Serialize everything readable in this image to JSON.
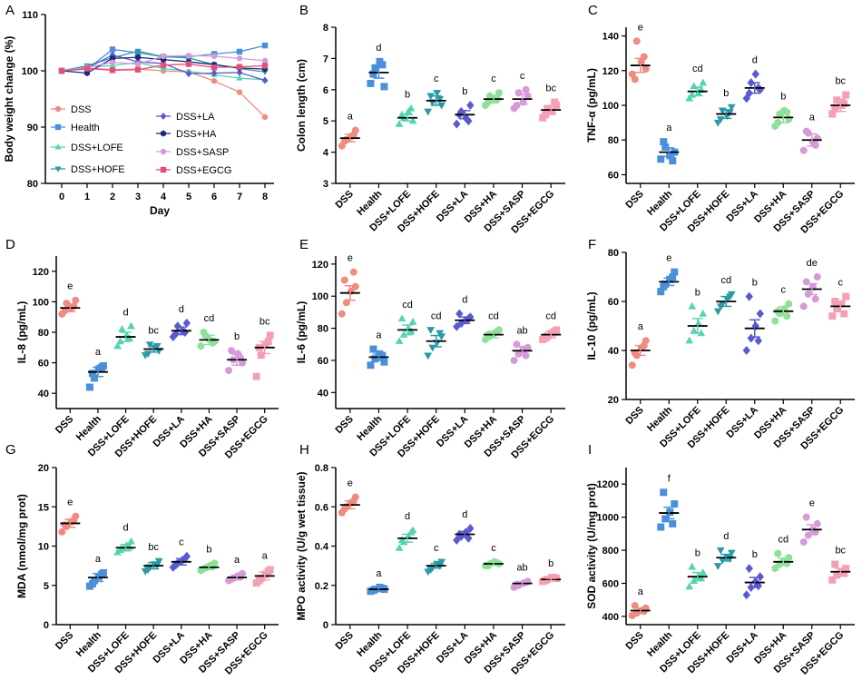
{
  "colors": {
    "DSS": "#f08b80",
    "Health": "#4a90d9",
    "DSS+LOFE": "#56d4b0",
    "DSS+HOFE": "#2a9aa6",
    "DSS+LA": "#5a5ad0",
    "DSS+HA": "#8fe09a",
    "DSS+SASP": "#d69ad8",
    "DSS+EGCG": "#f4a0b4",
    "Health_line": "#4a90d9",
    "DSS+HA_line": "#1a2a7a",
    "DSS+EGCG_line": "#e0507a"
  },
  "groups": [
    "DSS",
    "Health",
    "DSS+LOFE",
    "DSS+HOFE",
    "DSS+LA",
    "DSS+HA",
    "DSS+SASP",
    "DSS+EGCG"
  ],
  "marker_shapes": {
    "DSS": "circle",
    "Health": "square",
    "DSS+LOFE": "triangle-up",
    "DSS+HOFE": "triangle-down",
    "DSS+LA": "diamond",
    "DSS+HA": "hexagon",
    "DSS+SASP": "circle",
    "DSS+EGCG": "square"
  },
  "chart_data": [
    {
      "panel": "A",
      "type": "line",
      "xlabel": "Day",
      "ylabel": "Body weight change (%)",
      "ylim": [
        80,
        110
      ],
      "yticks": [
        80,
        90,
        100,
        110
      ],
      "x": [
        0,
        1,
        2,
        3,
        4,
        5,
        6,
        7,
        8
      ],
      "legend": {
        "position": "lower-left",
        "entries": [
          "DSS",
          "Health",
          "DSS+LOFE",
          "DSS+HOFE",
          "DSS+LA",
          "DSS+HA",
          "DSS+SASP",
          "DSS+EGCG"
        ]
      },
      "series": [
        {
          "name": "DSS",
          "marker": "circle",
          "values": [
            100,
            100.5,
            100.2,
            100.3,
            100,
            99.8,
            98.2,
            96.2,
            91.8
          ]
        },
        {
          "name": "Health",
          "marker": "square",
          "values": [
            100,
            100.3,
            103.8,
            103.2,
            102.5,
            102.5,
            103,
            103.4,
            104.5
          ]
        },
        {
          "name": "DSS+LOFE",
          "marker": "triangle-up",
          "values": [
            100,
            100.8,
            100.9,
            101.5,
            100.4,
            99.9,
            99.3,
            98.7,
            98.4
          ]
        },
        {
          "name": "DSS+HOFE",
          "marker": "triangle-down",
          "values": [
            100,
            100.9,
            102.3,
            103.5,
            102.5,
            102.3,
            101.1,
            100.4,
            99.8
          ]
        },
        {
          "name": "DSS+LA",
          "marker": "diamond",
          "values": [
            100,
            100.5,
            102.8,
            101.6,
            101.3,
            99.5,
            99.6,
            99.7,
            98.3
          ]
        },
        {
          "name": "DSS+HA",
          "marker": "hexagon",
          "values": [
            100,
            99.6,
            102.2,
            102.4,
            102,
            101.6,
            101.1,
            100.5,
            100.3
          ]
        },
        {
          "name": "DSS+SASP",
          "marker": "circle",
          "values": [
            100,
            100.6,
            101.5,
            101.2,
            102.6,
            102.7,
            102.6,
            102.2,
            101.8
          ]
        },
        {
          "name": "DSS+EGCG",
          "marker": "square",
          "values": [
            100,
            100.4,
            100.1,
            100.2,
            101,
            101.2,
            100.6,
            100.7,
            100.9
          ]
        }
      ]
    },
    {
      "panel": "B",
      "type": "scatter",
      "ylabel": "Colon length (cm)",
      "ylim": [
        3,
        8
      ],
      "yticks": [
        3,
        4,
        5,
        6,
        7,
        8
      ],
      "categories": [
        "DSS",
        "Health",
        "DSS+LOFE",
        "DSS+HOFE",
        "DSS+LA",
        "DSS+HA",
        "DSS+SASP",
        "DSS+EGCG"
      ],
      "means": [
        4.45,
        6.55,
        5.1,
        5.65,
        5.2,
        5.7,
        5.7,
        5.35
      ],
      "sems": [
        0.12,
        0.18,
        0.1,
        0.15,
        0.13,
        0.12,
        0.16,
        0.12
      ],
      "points": [
        [
          4.2,
          4.4,
          4.5,
          4.7,
          4.35,
          4.55
        ],
        [
          6.2,
          6.7,
          6.9,
          6.1,
          6.5,
          6.8
        ],
        [
          4.9,
          5.1,
          5.3,
          5.0,
          5.2,
          5.4
        ],
        [
          5.3,
          5.6,
          5.9,
          5.5,
          5.8,
          5.7
        ],
        [
          4.9,
          5.3,
          5.1,
          5.5,
          5.2,
          5.0
        ],
        [
          5.5,
          5.8,
          5.7,
          5.9,
          5.6,
          5.7
        ],
        [
          5.4,
          5.9,
          5.6,
          5.8,
          5.5,
          6.0
        ],
        [
          5.1,
          5.4,
          5.3,
          5.5,
          5.2,
          5.6
        ]
      ],
      "sig": [
        "a",
        "d",
        "b",
        "c",
        "b",
        "c",
        "c",
        "bc"
      ]
    },
    {
      "panel": "C",
      "type": "scatter",
      "ylabel": "TNF-α  (pg/mL)",
      "ylim": [
        55,
        145
      ],
      "yticks": [
        60,
        80,
        100,
        120,
        140
      ],
      "categories": [
        "DSS",
        "Health",
        "DSS+LOFE",
        "DSS+HOFE",
        "DSS+LA",
        "DSS+HA",
        "DSS+SASP",
        "DSS+EGCG"
      ],
      "means": [
        123,
        73,
        108,
        95,
        110,
        93,
        80,
        100
      ],
      "sems": [
        4,
        2.5,
        2.5,
        2.5,
        3,
        3,
        3.5,
        3.5
      ],
      "points": [
        [
          118,
          137,
          125,
          121,
          115,
          128
        ],
        [
          69,
          76,
          71,
          73,
          79,
          68
        ],
        [
          104,
          111,
          107,
          113,
          106,
          109
        ],
        [
          90,
          97,
          94,
          99,
          92,
          96
        ],
        [
          104,
          113,
          118,
          109,
          107,
          110
        ],
        [
          88,
          95,
          97,
          92,
          90,
          96
        ],
        [
          74,
          84,
          79,
          81,
          85,
          77
        ],
        [
          95,
          103,
          100,
          106,
          98,
          101
        ]
      ],
      "sig": [
        "e",
        "a",
        "cd",
        "b",
        "d",
        "b",
        "a",
        "bc"
      ]
    },
    {
      "panel": "D",
      "type": "scatter",
      "ylabel": "IL-8 (pg/mL)",
      "ylim": [
        30,
        130
      ],
      "yticks": [
        40,
        60,
        80,
        100,
        120
      ],
      "categories": [
        "DSS",
        "Health",
        "DSS+LOFE",
        "DSS+HOFE",
        "DSS+LA",
        "DSS+HA",
        "DSS+SASP",
        "DSS+EGCG"
      ],
      "means": [
        96,
        54,
        77,
        69,
        81,
        75,
        62,
        70
      ],
      "sems": [
        2.5,
        3,
        3,
        2,
        2.5,
        3,
        3.5,
        4
      ],
      "points": [
        [
          92,
          99,
          96,
          101,
          94,
          97
        ],
        [
          44,
          50,
          56,
          58,
          53,
          57
        ],
        [
          71,
          82,
          78,
          84,
          74,
          76
        ],
        [
          65,
          72,
          70,
          68,
          66,
          71
        ],
        [
          77,
          84,
          81,
          86,
          79,
          80
        ],
        [
          71,
          78,
          75,
          74,
          80,
          73
        ],
        [
          55,
          62,
          66,
          60,
          68,
          63
        ],
        [
          51,
          65,
          72,
          78,
          70,
          74
        ]
      ],
      "sig": [
        "e",
        "a",
        "d",
        "bc",
        "d",
        "cd",
        "b",
        "bc"
      ]
    },
    {
      "panel": "E",
      "type": "scatter",
      "ylabel": "IL-6 (pg/mL)",
      "ylim": [
        30,
        125
      ],
      "yticks": [
        40,
        60,
        80,
        100,
        120
      ],
      "categories": [
        "DSS",
        "Health",
        "DSS+LOFE",
        "DSS+HOFE",
        "DSS+LA",
        "DSS+HA",
        "DSS+SASP",
        "DSS+EGCG"
      ],
      "means": [
        102,
        62,
        79,
        72,
        85,
        76,
        66,
        76
      ],
      "sems": [
        4.5,
        2,
        3,
        3.5,
        2,
        2,
        2.5,
        2
      ],
      "points": [
        [
          89,
          96,
          103,
          106,
          110,
          115
        ],
        [
          57,
          61,
          64,
          59,
          67,
          63
        ],
        [
          72,
          76,
          80,
          84,
          86,
          78
        ],
        [
          63,
          68,
          71,
          75,
          79,
          77
        ],
        [
          81,
          83,
          85,
          87,
          89,
          86
        ],
        [
          73,
          75,
          77,
          79,
          76,
          78
        ],
        [
          60,
          64,
          67,
          68,
          70,
          63
        ],
        [
          73,
          75,
          77,
          79,
          74,
          78
        ]
      ],
      "sig": [
        "e",
        "a",
        "cd",
        "cd",
        "d",
        "cd",
        "ab",
        "cd"
      ]
    },
    {
      "panel": "F",
      "type": "scatter",
      "ylabel": "IL-10 (pg/mL)",
      "ylim": [
        20,
        80
      ],
      "yticks": [
        20,
        40,
        60,
        80
      ],
      "categories": [
        "DSS",
        "Health",
        "DSS+LOFE",
        "DSS+HOFE",
        "DSS+LA",
        "DSS+HA",
        "DSS+SASP",
        "DSS+EGCG"
      ],
      "means": [
        40,
        68,
        50,
        60,
        49,
        56,
        65,
        58
      ],
      "sems": [
        2,
        1.5,
        3,
        2,
        3.5,
        1.8,
        2.2,
        2
      ],
      "points": [
        [
          34,
          38,
          41,
          44,
          39,
          42
        ],
        [
          64,
          67,
          69,
          72,
          66,
          70
        ],
        [
          44,
          48,
          51,
          55,
          58,
          47
        ],
        [
          56,
          59,
          61,
          63,
          58,
          62
        ],
        [
          40,
          45,
          50,
          55,
          62,
          44
        ],
        [
          52,
          55,
          57,
          59,
          56,
          54
        ],
        [
          58,
          63,
          66,
          70,
          68,
          61
        ],
        [
          54,
          57,
          59,
          62,
          60,
          55
        ]
      ],
      "sig": [
        "a",
        "e",
        "b",
        "cd",
        "b",
        "c",
        "de",
        "c"
      ]
    },
    {
      "panel": "G",
      "type": "scatter",
      "ylabel": "MDA (nmol/mg prot)",
      "ylim": [
        0,
        20
      ],
      "yticks": [
        0,
        5,
        10,
        15,
        20
      ],
      "categories": [
        "DSS",
        "Health",
        "DSS+LOFE",
        "DSS+HOFE",
        "DSS+LA",
        "DSS+HA",
        "DSS+SASP",
        "DSS+EGCG"
      ],
      "means": [
        12.9,
        6.0,
        9.8,
        7.5,
        8.0,
        7.3,
        6.0,
        6.2
      ],
      "sems": [
        0.5,
        0.5,
        0.4,
        0.4,
        0.4,
        0.3,
        0.3,
        0.5
      ],
      "points": [
        [
          11.8,
          12.5,
          13.1,
          13.8,
          12.7,
          13.3
        ],
        [
          4.9,
          5.6,
          6.1,
          6.6,
          5.2,
          6.4
        ],
        [
          9.2,
          9.7,
          10.1,
          10.6,
          9.5,
          9.9
        ],
        [
          6.8,
          7.3,
          7.7,
          8.1,
          7.0,
          7.6
        ],
        [
          7.3,
          7.8,
          8.2,
          8.7,
          7.6,
          8.4
        ],
        [
          6.9,
          7.2,
          7.5,
          7.8,
          7.1,
          7.4
        ],
        [
          5.6,
          5.9,
          6.2,
          6.5,
          5.8,
          6.1
        ],
        [
          5.3,
          5.9,
          6.4,
          7.0,
          5.6,
          6.8
        ]
      ],
      "sig": [
        "e",
        "a",
        "d",
        "bc",
        "c",
        "b",
        "a",
        "a"
      ]
    },
    {
      "panel": "H",
      "type": "scatter",
      "ylabel": "MPO activity (U/g wet tissue)",
      "ylim": [
        0,
        0.8
      ],
      "yticks": [
        0,
        0.2,
        0.4,
        0.6,
        0.8
      ],
      "categories": [
        "DSS",
        "Health",
        "DSS+LOFE",
        "DSS+HOFE",
        "DSS+LA",
        "DSS+HA",
        "DSS+SASP",
        "DSS+EGCG"
      ],
      "means": [
        0.61,
        0.18,
        0.44,
        0.3,
        0.46,
        0.31,
        0.21,
        0.23
      ],
      "sems": [
        0.02,
        0.008,
        0.02,
        0.012,
        0.015,
        0.008,
        0.008,
        0.006
      ],
      "points": [
        [
          0.57,
          0.6,
          0.62,
          0.65,
          0.59,
          0.63
        ],
        [
          0.17,
          0.18,
          0.19,
          0.18,
          0.175,
          0.185
        ],
        [
          0.39,
          0.42,
          0.45,
          0.48,
          0.43,
          0.47
        ],
        [
          0.27,
          0.29,
          0.31,
          0.32,
          0.28,
          0.3
        ],
        [
          0.43,
          0.45,
          0.47,
          0.49,
          0.46,
          0.44
        ],
        [
          0.3,
          0.31,
          0.32,
          0.31,
          0.3,
          0.315
        ],
        [
          0.19,
          0.2,
          0.21,
          0.22,
          0.205,
          0.215
        ],
        [
          0.22,
          0.23,
          0.24,
          0.235,
          0.225,
          0.24
        ]
      ],
      "sig": [
        "e",
        "a",
        "d",
        "c",
        "d",
        "c",
        "ab",
        "b"
      ]
    },
    {
      "panel": "I",
      "type": "scatter",
      "ylabel": "SOD activity (U/mg prot)",
      "ylim": [
        350,
        1300
      ],
      "yticks": [
        400,
        600,
        800,
        1000,
        1200
      ],
      "categories": [
        "DSS",
        "Health",
        "DSS+LOFE",
        "DSS+HOFE",
        "DSS+LA",
        "DSS+HA",
        "DSS+SASP",
        "DSS+EGCG"
      ],
      "means": [
        435,
        1025,
        640,
        755,
        605,
        730,
        925,
        670
      ],
      "sems": [
        15,
        35,
        25,
        20,
        30,
        20,
        30,
        20
      ],
      "points": [
        [
          405,
          420,
          435,
          450,
          465,
          430
        ],
        [
          940,
          990,
          1030,
          1080,
          1150,
          960
        ],
        [
          580,
          615,
          640,
          665,
          700,
          630
        ],
        [
          705,
          740,
          760,
          785,
          800,
          750
        ],
        [
          530,
          575,
          610,
          640,
          690,
          585
        ],
        [
          690,
          715,
          735,
          755,
          780,
          720
        ],
        [
          850,
          890,
          925,
          960,
          1000,
          910
        ],
        [
          620,
          650,
          670,
          690,
          715,
          660
        ]
      ],
      "sig": [
        "a",
        "f",
        "b",
        "d",
        "b",
        "cd",
        "e",
        "bc"
      ]
    }
  ]
}
